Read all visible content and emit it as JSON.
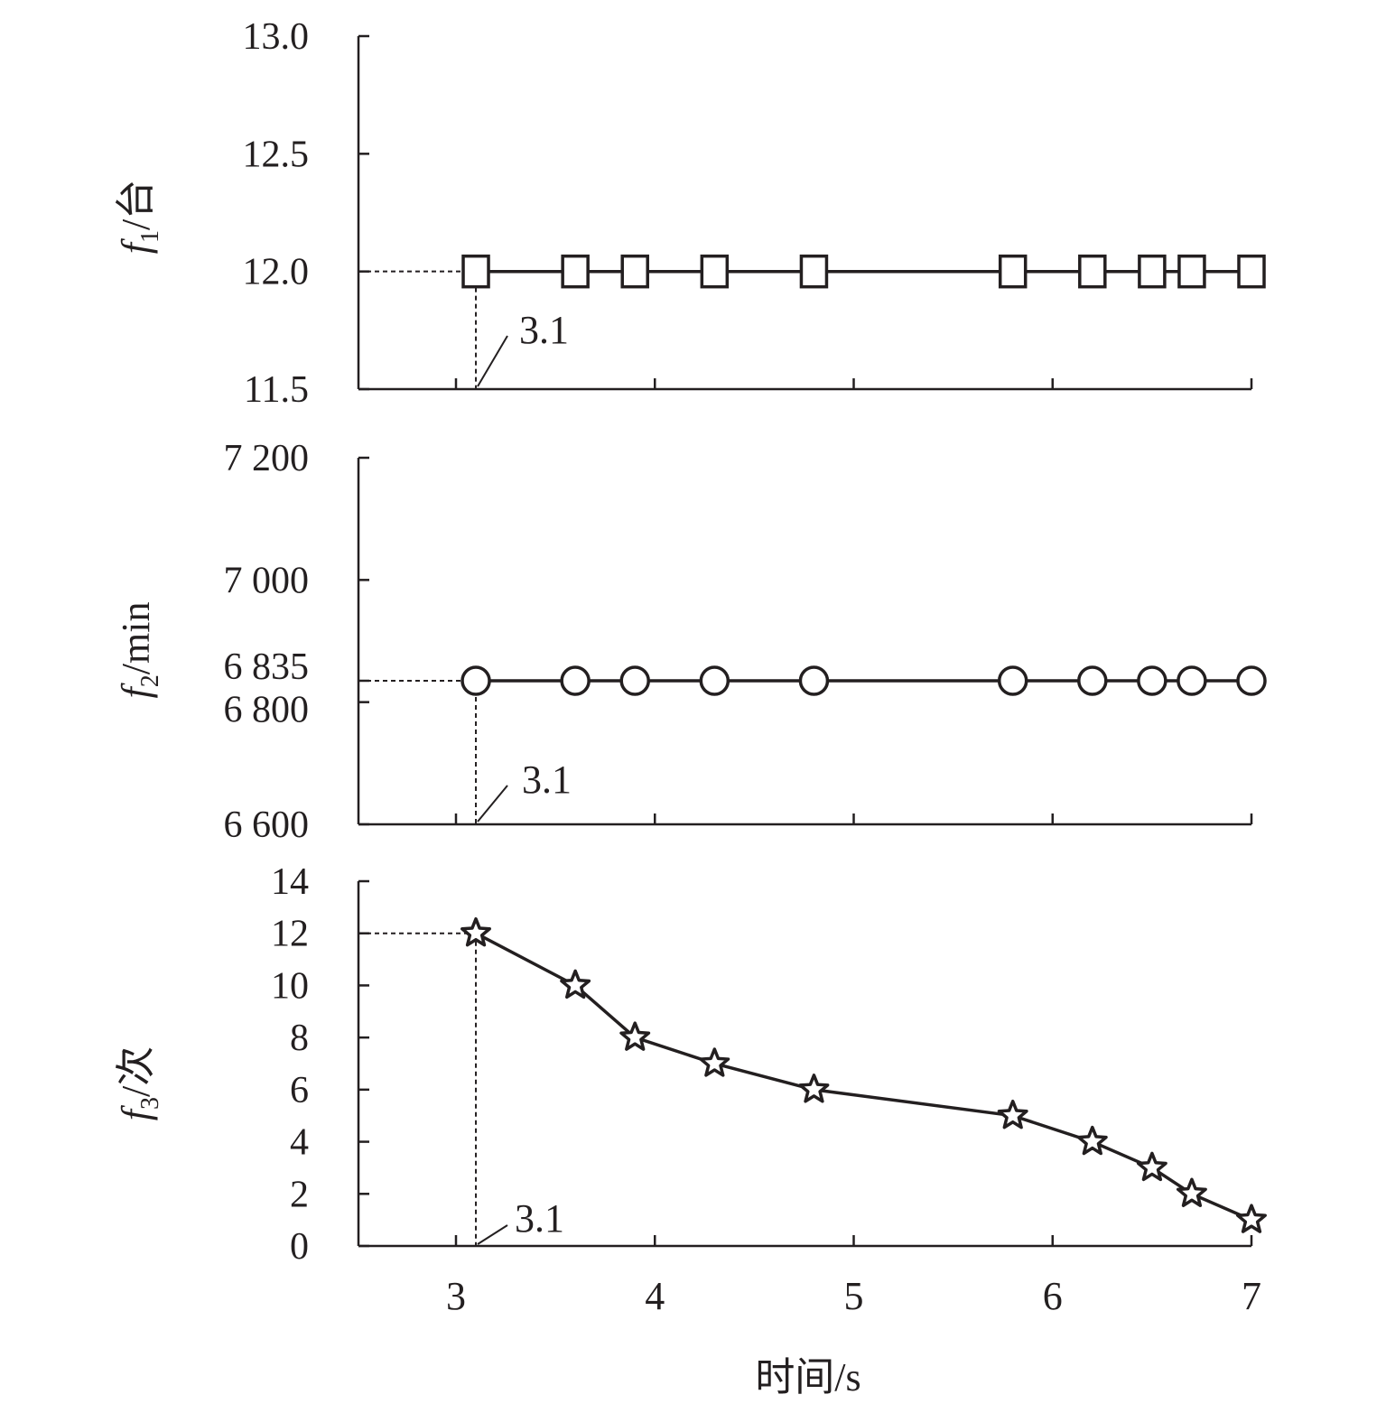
{
  "chart_data": [
    {
      "type": "line",
      "ylabel": {
        "base": "f",
        "sub": "1",
        "unit": "/台"
      },
      "ylim": [
        11.5,
        13.0
      ],
      "yticks": [
        "11.5",
        "12.0",
        "12.5",
        "13.0"
      ],
      "marker": "square",
      "x": [
        3.1,
        3.6,
        3.9,
        4.3,
        4.8,
        5.8,
        6.2,
        6.5,
        6.7,
        7.0
      ],
      "values": [
        12,
        12,
        12,
        12,
        12,
        12,
        12,
        12,
        12,
        12
      ],
      "annotation": {
        "text": "3.1",
        "x": 3.1,
        "y": 12.0
      }
    },
    {
      "type": "line",
      "ylabel": {
        "base": "f",
        "sub": "2",
        "unit": "/min"
      },
      "ylim": [
        6600,
        7200
      ],
      "yticks": [
        "6 600",
        "6 800",
        "6 835",
        "7 000",
        "7 200"
      ],
      "ytick_values": [
        6600,
        6800,
        6835,
        7000,
        7200
      ],
      "marker": "circle",
      "x": [
        3.1,
        3.6,
        3.9,
        4.3,
        4.8,
        5.8,
        6.2,
        6.5,
        6.7,
        7.0
      ],
      "values": [
        6835,
        6835,
        6835,
        6835,
        6835,
        6835,
        6835,
        6835,
        6835,
        6835
      ],
      "annotation": {
        "text": "3.1",
        "x": 3.1,
        "y": 6835
      }
    },
    {
      "type": "line",
      "ylabel": {
        "base": "f",
        "sub": "3",
        "unit": "/次"
      },
      "ylim": [
        0,
        14
      ],
      "yticks": [
        "0",
        "2",
        "4",
        "6",
        "8",
        "10",
        "12",
        "14"
      ],
      "marker": "star",
      "x": [
        3.1,
        3.6,
        3.9,
        4.3,
        4.8,
        5.8,
        6.2,
        6.5,
        6.7,
        7.0
      ],
      "values": [
        12,
        10,
        8,
        7,
        6,
        5,
        4,
        3,
        2,
        1
      ],
      "annotation": {
        "text": "3.1",
        "x": 3.1,
        "y": 12
      }
    }
  ],
  "x_axis": {
    "label": "时间/s",
    "ticks": [
      "3",
      "4",
      "5",
      "6",
      "7"
    ],
    "tick_values": [
      3,
      4,
      5,
      6,
      7
    ],
    "xlim": [
      2.5,
      7.0
    ]
  },
  "colors": {
    "ink": "#231f20",
    "background": "#ffffff"
  }
}
